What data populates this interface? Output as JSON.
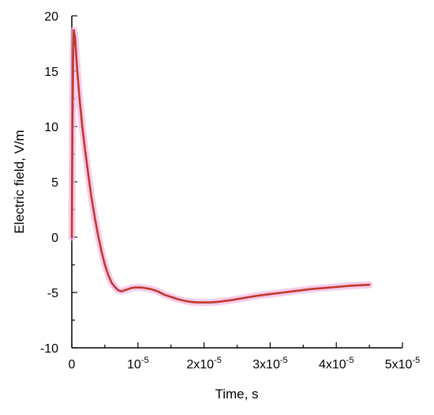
{
  "chart_data": {
    "type": "line",
    "xlabel": "Time, s",
    "ylabel": "Electric field, V/m",
    "xlim": [
      0,
      5e-05
    ],
    "ylim": [
      -10,
      20
    ],
    "x_ticks": [
      {
        "value": 0,
        "base": "0",
        "exp": ""
      },
      {
        "value": 1e-05,
        "base": "10",
        "exp": "-5"
      },
      {
        "value": 2e-05,
        "base": "2x10",
        "exp": "-5"
      },
      {
        "value": 3e-05,
        "base": "3x10",
        "exp": "-5"
      },
      {
        "value": 4e-05,
        "base": "4x10",
        "exp": "-5"
      },
      {
        "value": 5e-05,
        "base": "5x10",
        "exp": "-5"
      }
    ],
    "y_ticks": [
      {
        "value": -10,
        "label": "-10"
      },
      {
        "value": -5,
        "label": "-5"
      },
      {
        "value": 0,
        "label": "0"
      },
      {
        "value": 5,
        "label": "5"
      },
      {
        "value": 10,
        "label": "10"
      },
      {
        "value": 15,
        "label": "15"
      },
      {
        "value": 20,
        "label": "20"
      }
    ],
    "grid": false,
    "series": [
      {
        "color": "#c0392b",
        "halo_color": "#f4b8e4",
        "x": [
          0,
          1e-07,
          2e-07,
          3e-07,
          5e-07,
          8e-07,
          1.2e-06,
          1.6e-06,
          2e-06,
          2.5e-06,
          3e-06,
          3.5e-06,
          4e-06,
          4.5e-06,
          5e-06,
          5.5e-06,
          6e-06,
          6.5e-06,
          7e-06,
          7.5e-06,
          8e-06,
          8.5e-06,
          9e-06,
          9.5e-06,
          1e-05,
          1.05e-05,
          1.1e-05,
          1.2e-05,
          1.3e-05,
          1.4e-05,
          1.5e-05,
          1.6e-05,
          1.7e-05,
          1.8e-05,
          1.9e-05,
          2e-05,
          2.1e-05,
          2.2e-05,
          2.4e-05,
          2.6e-05,
          2.8e-05,
          3e-05,
          3.2e-05,
          3.4e-05,
          3.6e-05,
          3.8e-05,
          4e-05,
          4.2e-05,
          4.5e-05
        ],
        "y": [
          0,
          10,
          16.5,
          18.7,
          18,
          15.2,
          12.3,
          9.9,
          7.9,
          5.6,
          3.5,
          1.7,
          0.1,
          -1.3,
          -2.5,
          -3.4,
          -4.1,
          -4.5,
          -4.8,
          -4.9,
          -4.8,
          -4.7,
          -4.6,
          -4.55,
          -4.55,
          -4.55,
          -4.6,
          -4.7,
          -4.9,
          -5.2,
          -5.4,
          -5.6,
          -5.75,
          -5.85,
          -5.9,
          -5.9,
          -5.9,
          -5.85,
          -5.7,
          -5.5,
          -5.3,
          -5.15,
          -5.0,
          -4.85,
          -4.7,
          -4.6,
          -4.5,
          -4.4,
          -4.3
        ]
      }
    ]
  }
}
